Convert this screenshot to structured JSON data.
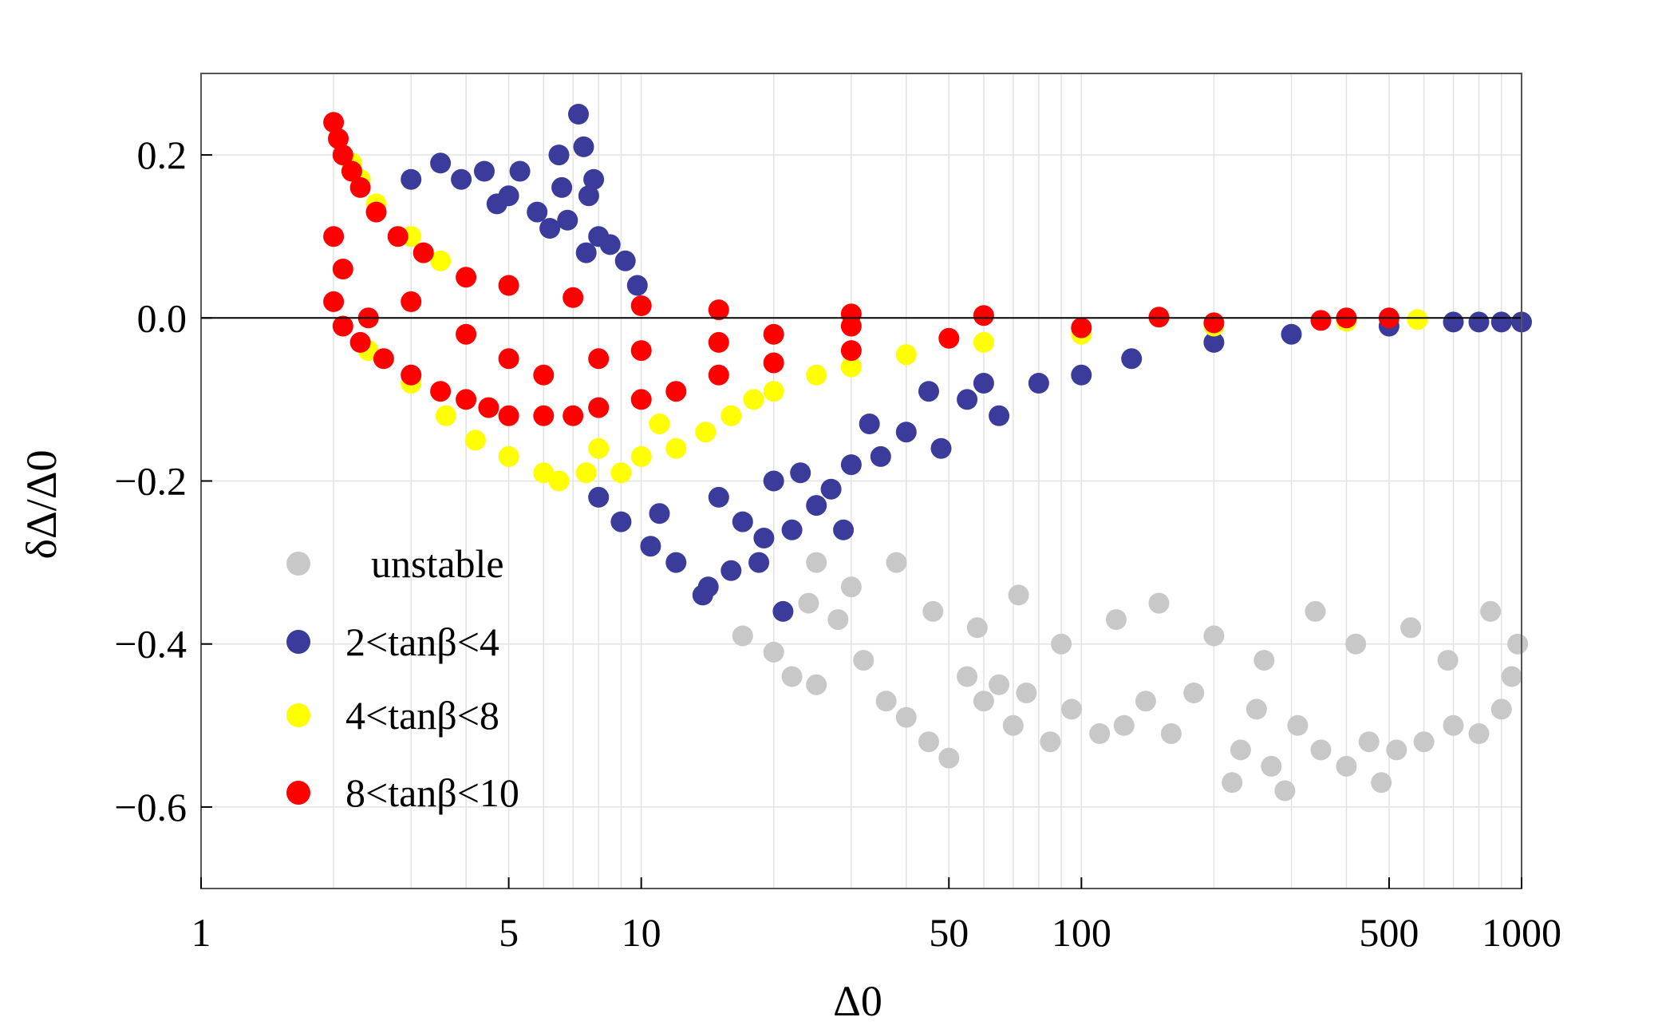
{
  "chart_data": {
    "type": "scatter",
    "title": "",
    "xlabel": "Δ0",
    "ylabel": "δΔ/Δ0",
    "xscale": "log",
    "xlim": [
      1,
      1000
    ],
    "ylim": [
      -0.7,
      0.3
    ],
    "grid": true,
    "legend_position": "bottom-left",
    "x_ticks": [
      {
        "value": 1,
        "label": "1"
      },
      {
        "value": 5,
        "label": "5"
      },
      {
        "value": 10,
        "label": "10"
      },
      {
        "value": 50,
        "label": "50"
      },
      {
        "value": 100,
        "label": "100"
      },
      {
        "value": 500,
        "label": "500"
      },
      {
        "value": 1000,
        "label": "1000"
      }
    ],
    "y_ticks": [
      {
        "value": 0.2,
        "label": "0.2"
      },
      {
        "value": 0.0,
        "label": "0.0"
      },
      {
        "value": -0.2,
        "label": "−0.2"
      },
      {
        "value": -0.4,
        "label": "−0.4"
      },
      {
        "value": -0.6,
        "label": "−0.6"
      }
    ],
    "series": [
      {
        "name": "unstable",
        "color": "#c8c8c8",
        "points": [
          [
            17,
            -0.39
          ],
          [
            20,
            -0.41
          ],
          [
            22,
            -0.44
          ],
          [
            25,
            -0.45
          ],
          [
            28,
            -0.37
          ],
          [
            32,
            -0.42
          ],
          [
            36,
            -0.47
          ],
          [
            40,
            -0.49
          ],
          [
            45,
            -0.52
          ],
          [
            50,
            -0.54
          ],
          [
            55,
            -0.44
          ],
          [
            60,
            -0.47
          ],
          [
            65,
            -0.45
          ],
          [
            70,
            -0.5
          ],
          [
            75,
            -0.46
          ],
          [
            85,
            -0.52
          ],
          [
            95,
            -0.48
          ],
          [
            110,
            -0.51
          ],
          [
            125,
            -0.5
          ],
          [
            140,
            -0.47
          ],
          [
            160,
            -0.51
          ],
          [
            180,
            -0.46
          ],
          [
            220,
            -0.57
          ],
          [
            230,
            -0.53
          ],
          [
            250,
            -0.48
          ],
          [
            270,
            -0.55
          ],
          [
            290,
            -0.58
          ],
          [
            310,
            -0.5
          ],
          [
            350,
            -0.53
          ],
          [
            400,
            -0.55
          ],
          [
            450,
            -0.52
          ],
          [
            480,
            -0.57
          ],
          [
            520,
            -0.53
          ],
          [
            600,
            -0.52
          ],
          [
            700,
            -0.5
          ],
          [
            800,
            -0.51
          ],
          [
            900,
            -0.48
          ],
          [
            950,
            -0.44
          ],
          [
            30,
            -0.33
          ],
          [
            38,
            -0.3
          ],
          [
            46,
            -0.36
          ],
          [
            58,
            -0.38
          ],
          [
            72,
            -0.34
          ],
          [
            90,
            -0.4
          ],
          [
            120,
            -0.37
          ],
          [
            150,
            -0.35
          ],
          [
            200,
            -0.39
          ],
          [
            260,
            -0.42
          ],
          [
            340,
            -0.36
          ],
          [
            420,
            -0.4
          ],
          [
            560,
            -0.38
          ],
          [
            680,
            -0.42
          ],
          [
            850,
            -0.36
          ],
          [
            980,
            -0.4
          ],
          [
            25,
            -0.3
          ],
          [
            24,
            -0.35
          ]
        ]
      },
      {
        "name": "2<tanβ<4",
        "color": "#3b3b9b",
        "points": [
          [
            7.2,
            0.25
          ],
          [
            6.5,
            0.2
          ],
          [
            7.4,
            0.21
          ],
          [
            7.8,
            0.17
          ],
          [
            7.6,
            0.15
          ],
          [
            6.6,
            0.16
          ],
          [
            5.3,
            0.18
          ],
          [
            4.4,
            0.18
          ],
          [
            3.5,
            0.19
          ],
          [
            3.9,
            0.17
          ],
          [
            4.7,
            0.14
          ],
          [
            5.8,
            0.13
          ],
          [
            6.2,
            0.11
          ],
          [
            8.5,
            0.09
          ],
          [
            9.2,
            0.07
          ],
          [
            9.8,
            0.04
          ],
          [
            7.5,
            0.08
          ],
          [
            5.0,
            0.15
          ],
          [
            3.0,
            0.17
          ],
          [
            6.8,
            0.12
          ],
          [
            8.0,
            0.1
          ],
          [
            14.2,
            -0.33
          ],
          [
            13.8,
            -0.34
          ],
          [
            12.0,
            -0.3
          ],
          [
            10.5,
            -0.28
          ],
          [
            9.0,
            -0.25
          ],
          [
            8.0,
            -0.22
          ],
          [
            16.0,
            -0.31
          ],
          [
            18.5,
            -0.3
          ],
          [
            21.0,
            -0.36
          ],
          [
            19.0,
            -0.27
          ],
          [
            22.0,
            -0.26
          ],
          [
            25.0,
            -0.23
          ],
          [
            28.8,
            -0.26
          ],
          [
            27.0,
            -0.21
          ],
          [
            30.0,
            -0.18
          ],
          [
            35.0,
            -0.17
          ],
          [
            40.0,
            -0.14
          ],
          [
            48.0,
            -0.16
          ],
          [
            55.0,
            -0.1
          ],
          [
            65.0,
            -0.12
          ],
          [
            80.0,
            -0.08
          ],
          [
            100.0,
            -0.07
          ],
          [
            130.0,
            -0.05
          ],
          [
            200.0,
            -0.03
          ],
          [
            300.0,
            -0.02
          ],
          [
            500.0,
            -0.01
          ],
          [
            700.0,
            -0.005
          ],
          [
            800.0,
            -0.005
          ],
          [
            900.0,
            -0.005
          ],
          [
            1000.0,
            -0.005
          ],
          [
            11.0,
            -0.24
          ],
          [
            15.0,
            -0.22
          ],
          [
            17.0,
            -0.25
          ],
          [
            20.0,
            -0.2
          ],
          [
            23.0,
            -0.19
          ],
          [
            33.0,
            -0.13
          ],
          [
            45.0,
            -0.09
          ],
          [
            60.0,
            -0.08
          ]
        ]
      },
      {
        "name": "4<tanβ<8",
        "color": "#ffff00",
        "points": [
          [
            2.2,
            0.19
          ],
          [
            2.3,
            0.17
          ],
          [
            2.5,
            0.14
          ],
          [
            3.0,
            0.1
          ],
          [
            3.5,
            0.07
          ],
          [
            2.4,
            -0.04
          ],
          [
            3.0,
            -0.08
          ],
          [
            3.6,
            -0.12
          ],
          [
            4.2,
            -0.15
          ],
          [
            5.0,
            -0.17
          ],
          [
            6.0,
            -0.19
          ],
          [
            6.5,
            -0.2
          ],
          [
            7.5,
            -0.19
          ],
          [
            9.0,
            -0.19
          ],
          [
            10.0,
            -0.17
          ],
          [
            12.0,
            -0.16
          ],
          [
            14.0,
            -0.14
          ],
          [
            16.0,
            -0.12
          ],
          [
            18.0,
            -0.1
          ],
          [
            20.0,
            -0.09
          ],
          [
            25.0,
            -0.07
          ],
          [
            30.0,
            -0.06
          ],
          [
            40.0,
            -0.045
          ],
          [
            60.0,
            -0.03
          ],
          [
            100.0,
            -0.02
          ],
          [
            200.0,
            -0.01
          ],
          [
            400.0,
            -0.004
          ],
          [
            580.0,
            -0.002
          ],
          [
            8.0,
            -0.16
          ],
          [
            11.0,
            -0.13
          ]
        ]
      },
      {
        "name": "8<tanβ<10",
        "color": "#ff0000",
        "points": [
          [
            2.0,
            0.24
          ],
          [
            2.05,
            0.22
          ],
          [
            2.1,
            0.2
          ],
          [
            2.2,
            0.18
          ],
          [
            2.3,
            0.16
          ],
          [
            2.5,
            0.13
          ],
          [
            2.8,
            0.1
          ],
          [
            3.2,
            0.08
          ],
          [
            4.0,
            0.05
          ],
          [
            5.0,
            0.04
          ],
          [
            7.0,
            0.025
          ],
          [
            10.0,
            0.015
          ],
          [
            15.0,
            0.01
          ],
          [
            30.0,
            0.005
          ],
          [
            60.0,
            0.003
          ],
          [
            150.0,
            0.001
          ],
          [
            400.0,
            0.0
          ],
          [
            500.0,
            0.0
          ],
          [
            2.0,
            0.02
          ],
          [
            2.1,
            -0.01
          ],
          [
            2.3,
            -0.03
          ],
          [
            2.6,
            -0.05
          ],
          [
            3.0,
            -0.07
          ],
          [
            3.5,
            -0.09
          ],
          [
            4.0,
            -0.1
          ],
          [
            4.5,
            -0.11
          ],
          [
            5.0,
            -0.12
          ],
          [
            6.0,
            -0.12
          ],
          [
            7.0,
            -0.12
          ],
          [
            8.0,
            -0.11
          ],
          [
            10.0,
            -0.1
          ],
          [
            12.0,
            -0.09
          ],
          [
            15.0,
            -0.07
          ],
          [
            20.0,
            -0.055
          ],
          [
            30.0,
            -0.04
          ],
          [
            50.0,
            -0.025
          ],
          [
            100.0,
            -0.012
          ],
          [
            200.0,
            -0.006
          ],
          [
            350.0,
            -0.003
          ],
          [
            2.0,
            0.1
          ],
          [
            2.1,
            0.06
          ],
          [
            2.4,
            0.0
          ],
          [
            3.0,
            0.02
          ],
          [
            4.0,
            -0.02
          ],
          [
            5.0,
            -0.05
          ],
          [
            6.0,
            -0.07
          ],
          [
            8.0,
            -0.05
          ],
          [
            10.0,
            -0.04
          ],
          [
            15.0,
            -0.03
          ],
          [
            20.0,
            -0.02
          ],
          [
            30.0,
            -0.01
          ]
        ]
      }
    ]
  },
  "legend": {
    "entries": [
      {
        "label": "unstable",
        "color": "#c8c8c8"
      },
      {
        "label": "2<tanβ<4",
        "color": "#3b3b9b"
      },
      {
        "label": "4<tanβ<8",
        "color": "#ffff00"
      },
      {
        "label": "8<tanβ<10",
        "color": "#ff0000"
      }
    ]
  }
}
